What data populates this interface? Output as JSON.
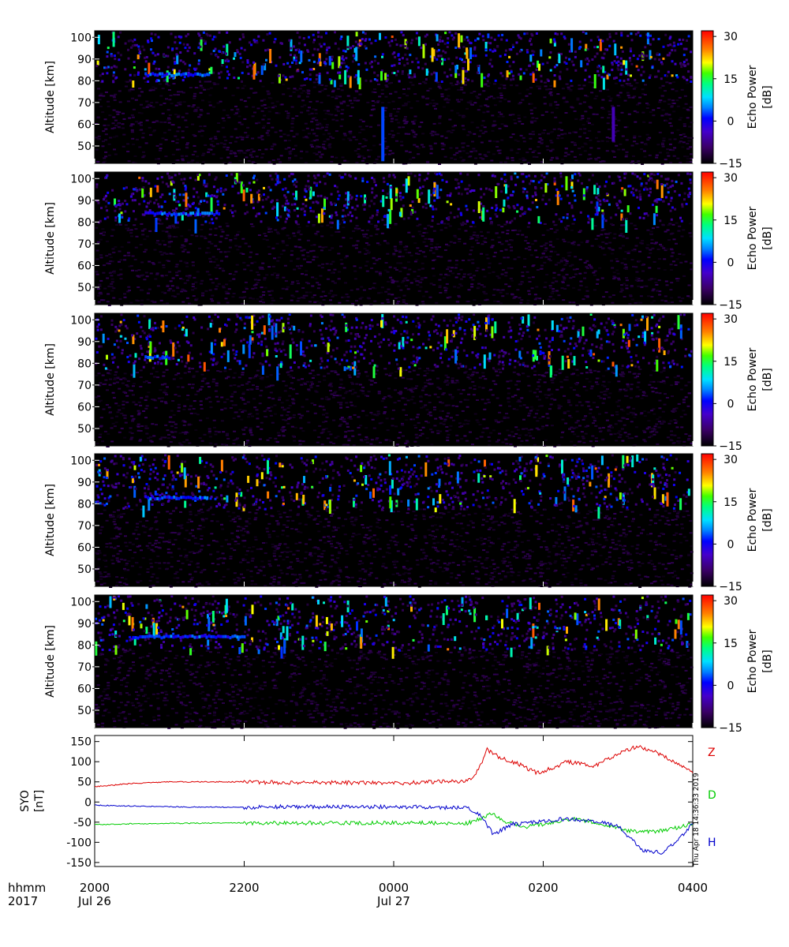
{
  "chart_data": [
    {
      "type": "heatmap",
      "panel": 1,
      "ylabel": "Altitude [km]",
      "yticks": [
        50,
        60,
        70,
        80,
        90,
        100
      ],
      "ylim": [
        42,
        103
      ],
      "xlim": [
        "2017-07-26 20:00",
        "2017-07-27 04:00"
      ],
      "colorbar": {
        "label": "Echo Power [dB]",
        "ticks": [
          -15,
          0,
          15,
          30
        ],
        "range": [
          -15,
          32
        ]
      },
      "scatter_band_km": [
        80,
        103
      ],
      "dense_layer": {
        "start": "20:40",
        "end": "21:30",
        "altitude_km": [
          81,
          84
        ]
      },
      "strong_columns": [
        {
          "time": "23:50",
          "altitude_km": [
            43,
            68
          ],
          "power_db": 3
        },
        {
          "time": "02:55",
          "altitude_km": [
            52,
            68
          ],
          "power_db": -5
        }
      ]
    },
    {
      "type": "heatmap",
      "panel": 2,
      "ylabel": "Altitude [km]",
      "yticks": [
        50,
        60,
        70,
        80,
        90,
        100
      ],
      "ylim": [
        42,
        103
      ],
      "xlim": [
        "2017-07-26 20:00",
        "2017-07-27 04:00"
      ],
      "colorbar": {
        "label": "Echo Power [dB]",
        "ticks": [
          -15,
          0,
          15,
          30
        ],
        "range": [
          -15,
          32
        ]
      },
      "scatter_band_km": [
        80,
        103
      ],
      "dense_layer": {
        "start": "20:40",
        "end": "21:40",
        "altitude_km": [
          82,
          85
        ]
      },
      "strong_columns": []
    },
    {
      "type": "heatmap",
      "panel": 3,
      "ylabel": "Altitude [km]",
      "yticks": [
        50,
        60,
        70,
        80,
        90,
        100
      ],
      "ylim": [
        42,
        103
      ],
      "xlim": [
        "2017-07-26 20:00",
        "2017-07-27 04:00"
      ],
      "colorbar": {
        "label": "Echo Power [dB]",
        "ticks": [
          -15,
          0,
          15,
          30
        ],
        "range": [
          -15,
          32
        ]
      },
      "scatter_band_km": [
        78,
        103
      ],
      "dense_layer": {
        "start": "20:40",
        "end": "21:00",
        "altitude_km": [
          82,
          84
        ]
      },
      "strong_columns": []
    },
    {
      "type": "heatmap",
      "panel": 4,
      "ylabel": "Altitude [km]",
      "yticks": [
        50,
        60,
        70,
        80,
        90,
        100
      ],
      "ylim": [
        42,
        103
      ],
      "xlim": [
        "2017-07-26 20:00",
        "2017-07-27 04:00"
      ],
      "colorbar": {
        "label": "Echo Power [dB]",
        "ticks": [
          -15,
          0,
          15,
          30
        ],
        "range": [
          -15,
          32
        ]
      },
      "scatter_band_km": [
        78,
        103
      ],
      "dense_layer": {
        "start": "20:40",
        "end": "21:30",
        "altitude_km": [
          82,
          84
        ]
      },
      "strong_columns": []
    },
    {
      "type": "heatmap",
      "panel": 5,
      "ylabel": "Altitude [km]",
      "yticks": [
        50,
        60,
        70,
        80,
        90,
        100
      ],
      "ylim": [
        42,
        103
      ],
      "xlim": [
        "2017-07-26 20:00",
        "2017-07-27 04:00"
      ],
      "colorbar": {
        "label": "Echo Power [dB]",
        "ticks": [
          -15,
          0,
          15,
          30
        ],
        "range": [
          -15,
          32
        ]
      },
      "scatter_band_km": [
        78,
        103
      ],
      "dense_layer": {
        "start": "20:30",
        "end": "22:00",
        "altitude_km": [
          81,
          85
        ]
      },
      "strong_columns": []
    },
    {
      "type": "line",
      "panel": 6,
      "ylabel": "SYO [nT]",
      "ylabel_lines": [
        "SYO",
        "[nT]"
      ],
      "ylim": [
        -160,
        165
      ],
      "yticks": [
        -150,
        -100,
        -50,
        0,
        50,
        100,
        150
      ],
      "xlim": [
        "2017-07-26 20:00",
        "2017-07-27 04:00"
      ],
      "series": [
        {
          "name": "Z",
          "color": "#dd0000",
          "points": [
            [
              "20:00",
              38
            ],
            [
              "20:30",
              46
            ],
            [
              "21:00",
              50
            ],
            [
              "22:00",
              50
            ],
            [
              "22:30",
              48
            ],
            [
              "23:00",
              48
            ],
            [
              "23:30",
              48
            ],
            [
              "00:00",
              46
            ],
            [
              "00:30",
              50
            ],
            [
              "01:00",
              53
            ],
            [
              "01:08",
              80
            ],
            [
              "01:15",
              130
            ],
            [
              "01:25",
              110
            ],
            [
              "01:40",
              95
            ],
            [
              "01:55",
              72
            ],
            [
              "02:05",
              82
            ],
            [
              "02:20",
              100
            ],
            [
              "02:40",
              88
            ],
            [
              "03:00",
              118
            ],
            [
              "03:15",
              138
            ],
            [
              "03:30",
              125
            ],
            [
              "03:45",
              100
            ],
            [
              "04:00",
              72
            ]
          ]
        },
        {
          "name": "D",
          "color": "#00cc00",
          "points": [
            [
              "20:00",
              -56
            ],
            [
              "20:30",
              -54
            ],
            [
              "21:00",
              -53
            ],
            [
              "22:00",
              -52
            ],
            [
              "23:00",
              -52
            ],
            [
              "00:00",
              -52
            ],
            [
              "01:00",
              -52
            ],
            [
              "01:10",
              -42
            ],
            [
              "01:18",
              -28
            ],
            [
              "01:30",
              -48
            ],
            [
              "01:45",
              -62
            ],
            [
              "02:05",
              -52
            ],
            [
              "02:25",
              -42
            ],
            [
              "02:40",
              -50
            ],
            [
              "03:00",
              -65
            ],
            [
              "03:15",
              -75
            ],
            [
              "03:30",
              -73
            ],
            [
              "03:45",
              -65
            ],
            [
              "04:00",
              -55
            ]
          ]
        },
        {
          "name": "H",
          "color": "#0000cc",
          "points": [
            [
              "20:00",
              -8
            ],
            [
              "20:30",
              -10
            ],
            [
              "21:00",
              -12
            ],
            [
              "22:00",
              -13
            ],
            [
              "22:30",
              -12
            ],
            [
              "23:00",
              -12
            ],
            [
              "00:00",
              -12
            ],
            [
              "00:30",
              -13
            ],
            [
              "01:00",
              -15
            ],
            [
              "01:10",
              -35
            ],
            [
              "01:20",
              -80
            ],
            [
              "01:35",
              -55
            ],
            [
              "01:55",
              -50
            ],
            [
              "02:15",
              -42
            ],
            [
              "02:40",
              -48
            ],
            [
              "03:00",
              -58
            ],
            [
              "03:10",
              -90
            ],
            [
              "03:20",
              -120
            ],
            [
              "03:35",
              -125
            ],
            [
              "03:50",
              -90
            ],
            [
              "04:00",
              -55
            ]
          ]
        }
      ]
    }
  ],
  "x_axis": {
    "row1_label": "hhmm",
    "row2_label": "2017",
    "ticks": [
      {
        "time": "20:00",
        "label": "2000",
        "sub": "Jul 26"
      },
      {
        "time": "22:00",
        "label": "2200",
        "sub": ""
      },
      {
        "time": "00:00",
        "label": "0000",
        "sub": "Jul 27"
      },
      {
        "time": "02:00",
        "label": "0200",
        "sub": ""
      },
      {
        "time": "04:00",
        "label": "0400",
        "sub": ""
      }
    ]
  },
  "colorbar_labels": {
    "line1": "Echo Power",
    "line2": "[dB]"
  },
  "timestamp": "Thu Apr 18 14:36:33 2019"
}
